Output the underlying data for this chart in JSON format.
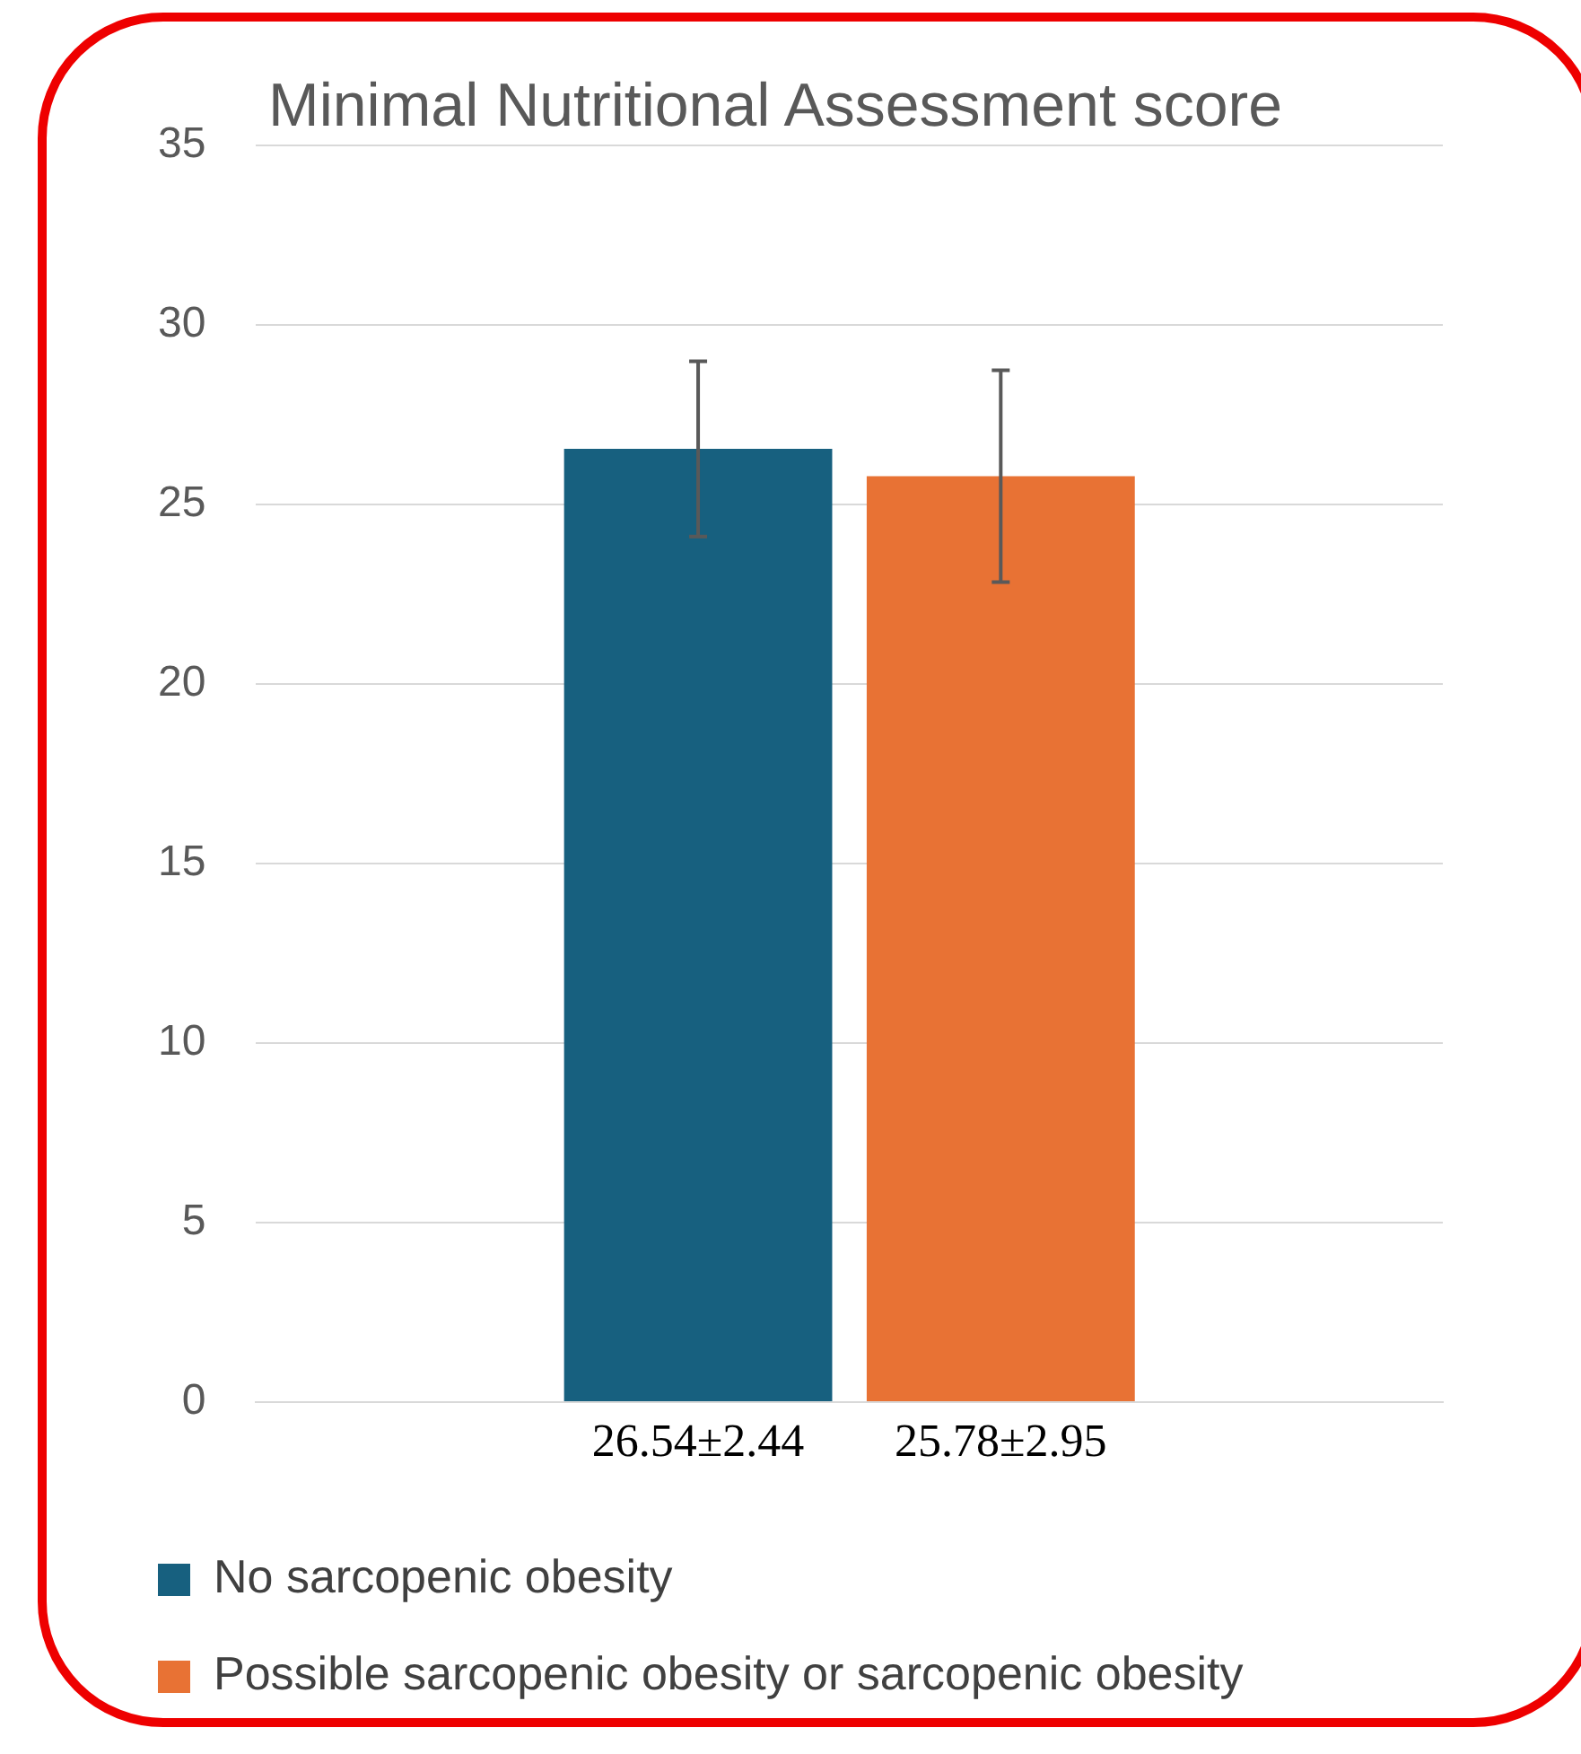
{
  "chart_data": {
    "type": "bar",
    "title": "Minimal Nutritional Assessment score",
    "categories": [
      null
    ],
    "series": [
      {
        "name": "No sarcopenic obesity",
        "color": "#17607f",
        "values": [
          26.54
        ],
        "errors": [
          2.44
        ],
        "value_labels": [
          "26.54±2.44"
        ]
      },
      {
        "name": "Possible sarcopenic obesity or sarcopenic obesity",
        "color": "#e87234",
        "values": [
          25.78
        ],
        "errors": [
          2.95
        ],
        "value_labels": [
          "25.78±2.95"
        ]
      }
    ],
    "ylim": [
      0,
      35
    ],
    "yticks": [
      0,
      5,
      10,
      15,
      20,
      25,
      30,
      35
    ],
    "grid": "y",
    "legend": "bottom"
  }
}
